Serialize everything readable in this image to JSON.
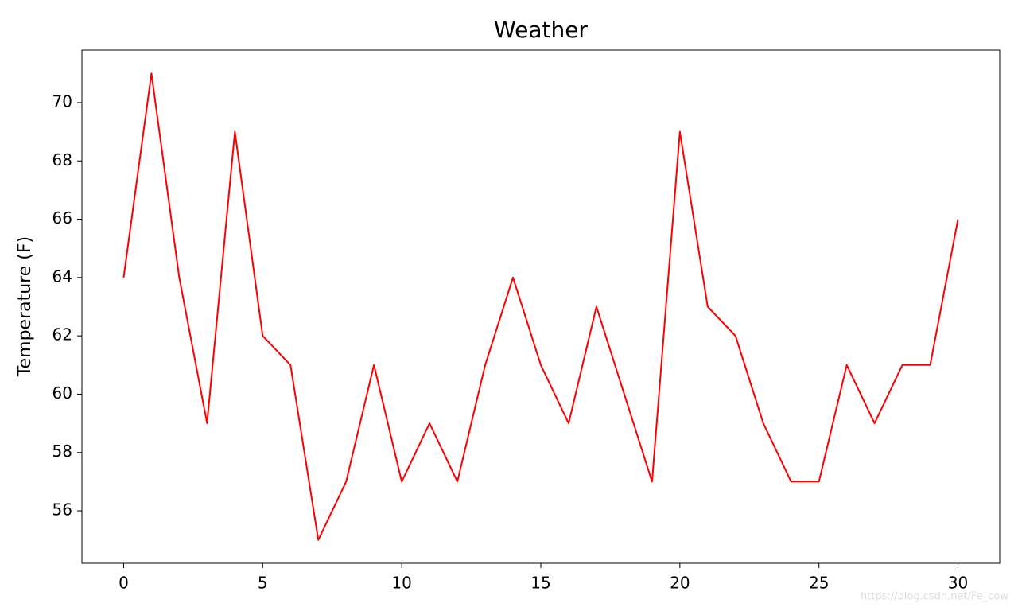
{
  "chart_data": {
    "type": "line",
    "title": "Weather",
    "y_label": "Temperature (F)",
    "x": [
      0,
      1,
      2,
      3,
      4,
      5,
      6,
      7,
      8,
      9,
      10,
      11,
      12,
      13,
      14,
      15,
      16,
      17,
      18,
      19,
      20,
      21,
      22,
      23,
      24,
      25,
      26,
      27,
      28,
      29,
      30
    ],
    "series": [
      {
        "color": "#ff0000",
        "values": [
          64,
          71,
          64,
          59,
          69,
          62,
          61,
          55,
          57,
          61,
          57,
          59,
          57,
          61,
          64,
          61,
          59,
          63,
          60,
          57,
          69,
          63,
          62,
          59,
          57,
          57,
          61,
          59,
          61,
          61,
          66
        ]
      }
    ],
    "xlim": [
      -1.5,
      31.5
    ],
    "xticks": [
      0,
      5,
      10,
      15,
      20,
      25,
      30
    ],
    "ylim": [
      54.2,
      71.8
    ],
    "yticks": [
      56,
      58,
      60,
      62,
      64,
      66,
      68,
      70
    ],
    "watermark": "https://blog.csdn.net/Fe_cow"
  }
}
